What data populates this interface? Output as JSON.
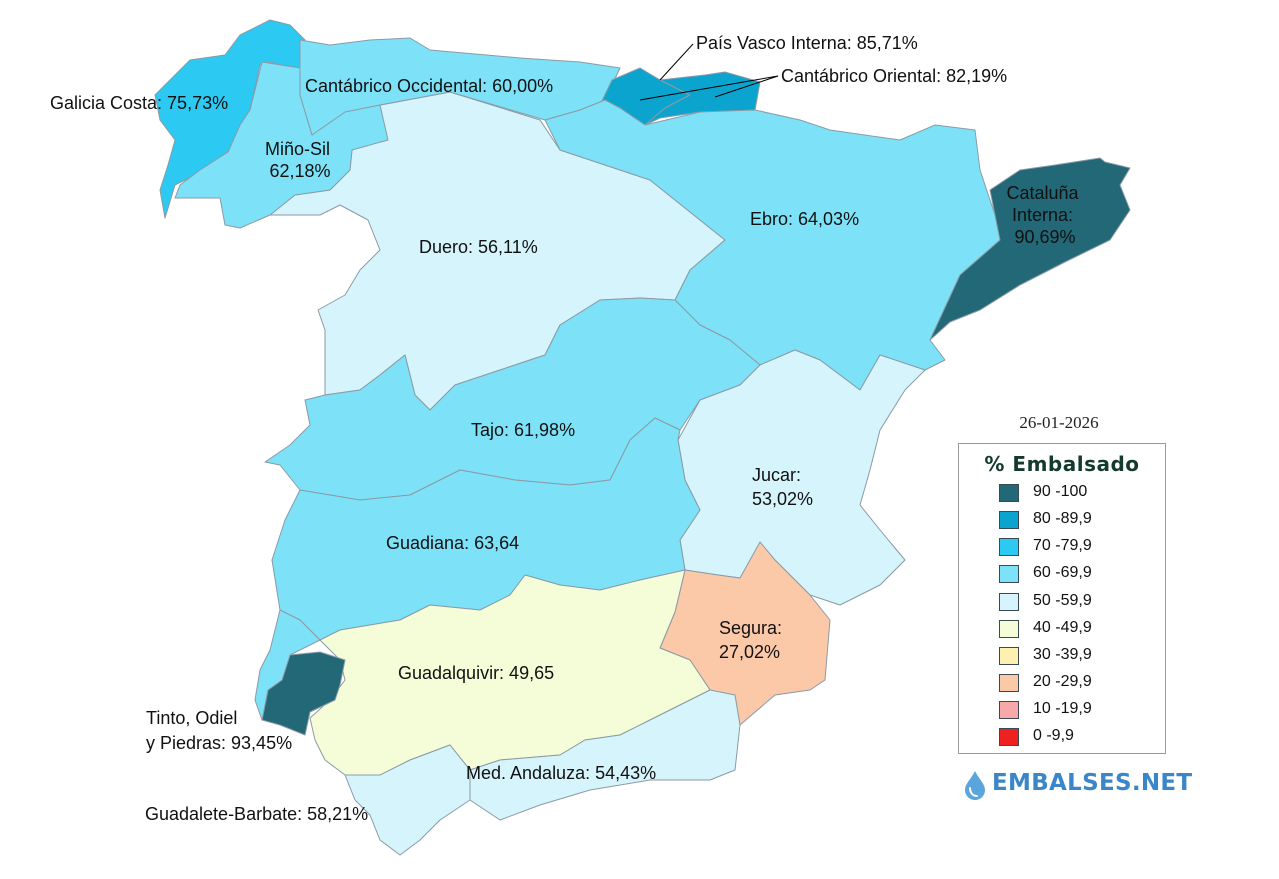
{
  "date": "26-01-2026",
  "legend": {
    "title": "% Embalsado",
    "items": [
      {
        "label": "90 -100",
        "color": "#226877"
      },
      {
        "label": "80 -89,9",
        "color": "#0aa4cf"
      },
      {
        "label": "70 -79,9",
        "color": "#2ccaf2"
      },
      {
        "label": "60 -69,9",
        "color": "#7de2f8"
      },
      {
        "label": "50 -59,9",
        "color": "#d6f4fb"
      },
      {
        "label": "40 -49,9",
        "color": "#f4fdd8"
      },
      {
        "label": "30 -39,9",
        "color": "#fef0b0"
      },
      {
        "label": "20 -29,9",
        "color": "#fbc9a8"
      },
      {
        "label": "10 -19,9",
        "color": "#f8a8a8"
      },
      {
        "label": "0 -9,9",
        "color": "#ef2020"
      }
    ]
  },
  "brand": "EMBALSES.NET",
  "basins": [
    {
      "id": "galicia-costa",
      "name": "Galicia Costa",
      "label": "Galicia Costa: 75,73%",
      "percent": 75.73,
      "color": "#2ccaf2"
    },
    {
      "id": "mino-sil",
      "name": "Miño-Sil",
      "label_lines": [
        "Miño-Sil",
        "62,18%"
      ],
      "percent": 62.18,
      "color": "#7de2f8"
    },
    {
      "id": "cantabrico-occidental",
      "name": "Cantábrico Occidental",
      "label": "Cantábrico Occidental: 60,00%",
      "percent": 60.0,
      "color": "#7de2f8"
    },
    {
      "id": "pais-vasco-interna",
      "name": "País Vasco Interna",
      "label": "País Vasco Interna: 85,71%",
      "percent": 85.71,
      "color": "#0aa4cf"
    },
    {
      "id": "cantabrico-oriental",
      "name": "Cantábrico Oriental",
      "label": "Cantábrico Oriental: 82,19%",
      "percent": 82.19,
      "color": "#0aa4cf"
    },
    {
      "id": "duero",
      "name": "Duero",
      "label": "Duero: 56,11%",
      "percent": 56.11,
      "color": "#d6f4fb"
    },
    {
      "id": "ebro",
      "name": "Ebro",
      "label": "Ebro: 64,03%",
      "percent": 64.03,
      "color": "#7de2f8"
    },
    {
      "id": "cataluna-interna",
      "name": "Cataluña Interna",
      "label_lines": [
        "Cataluña",
        "Interna:",
        "90,69%"
      ],
      "percent": 90.69,
      "color": "#226877"
    },
    {
      "id": "tajo",
      "name": "Tajo",
      "label": "Tajo: 61,98%",
      "percent": 61.98,
      "color": "#7de2f8"
    },
    {
      "id": "jucar",
      "name": "Jucar",
      "label_lines": [
        "Jucar:",
        "53,02%"
      ],
      "percent": 53.02,
      "color": "#d6f4fb"
    },
    {
      "id": "guadiana",
      "name": "Guadiana",
      "label": "Guadiana: 63,64",
      "percent": 63.64,
      "color": "#7de2f8"
    },
    {
      "id": "segura",
      "name": "Segura",
      "label_lines": [
        "Segura:",
        "27,02%"
      ],
      "percent": 27.02,
      "color": "#fbc9a8"
    },
    {
      "id": "guadalquivir",
      "name": "Guadalquivir",
      "label": "Guadalquivir: 49,65",
      "percent": 49.65,
      "color": "#f4fdd8"
    },
    {
      "id": "tinto-odiel-piedras",
      "name": "Tinto, Odiel y Piedras",
      "label_lines": [
        "Tinto, Odiel",
        "y Piedras: 93,45%"
      ],
      "percent": 93.45,
      "color": "#226877"
    },
    {
      "id": "med-andaluza",
      "name": "Med. Andaluza",
      "label": "Med. Andaluza: 54,43%",
      "percent": 54.43,
      "color": "#d6f4fb"
    },
    {
      "id": "guadalete-barbate",
      "name": "Guadalete-Barbate",
      "label": "Guadalete-Barbate: 58,21%",
      "percent": 58.21,
      "color": "#d6f4fb"
    }
  ]
}
